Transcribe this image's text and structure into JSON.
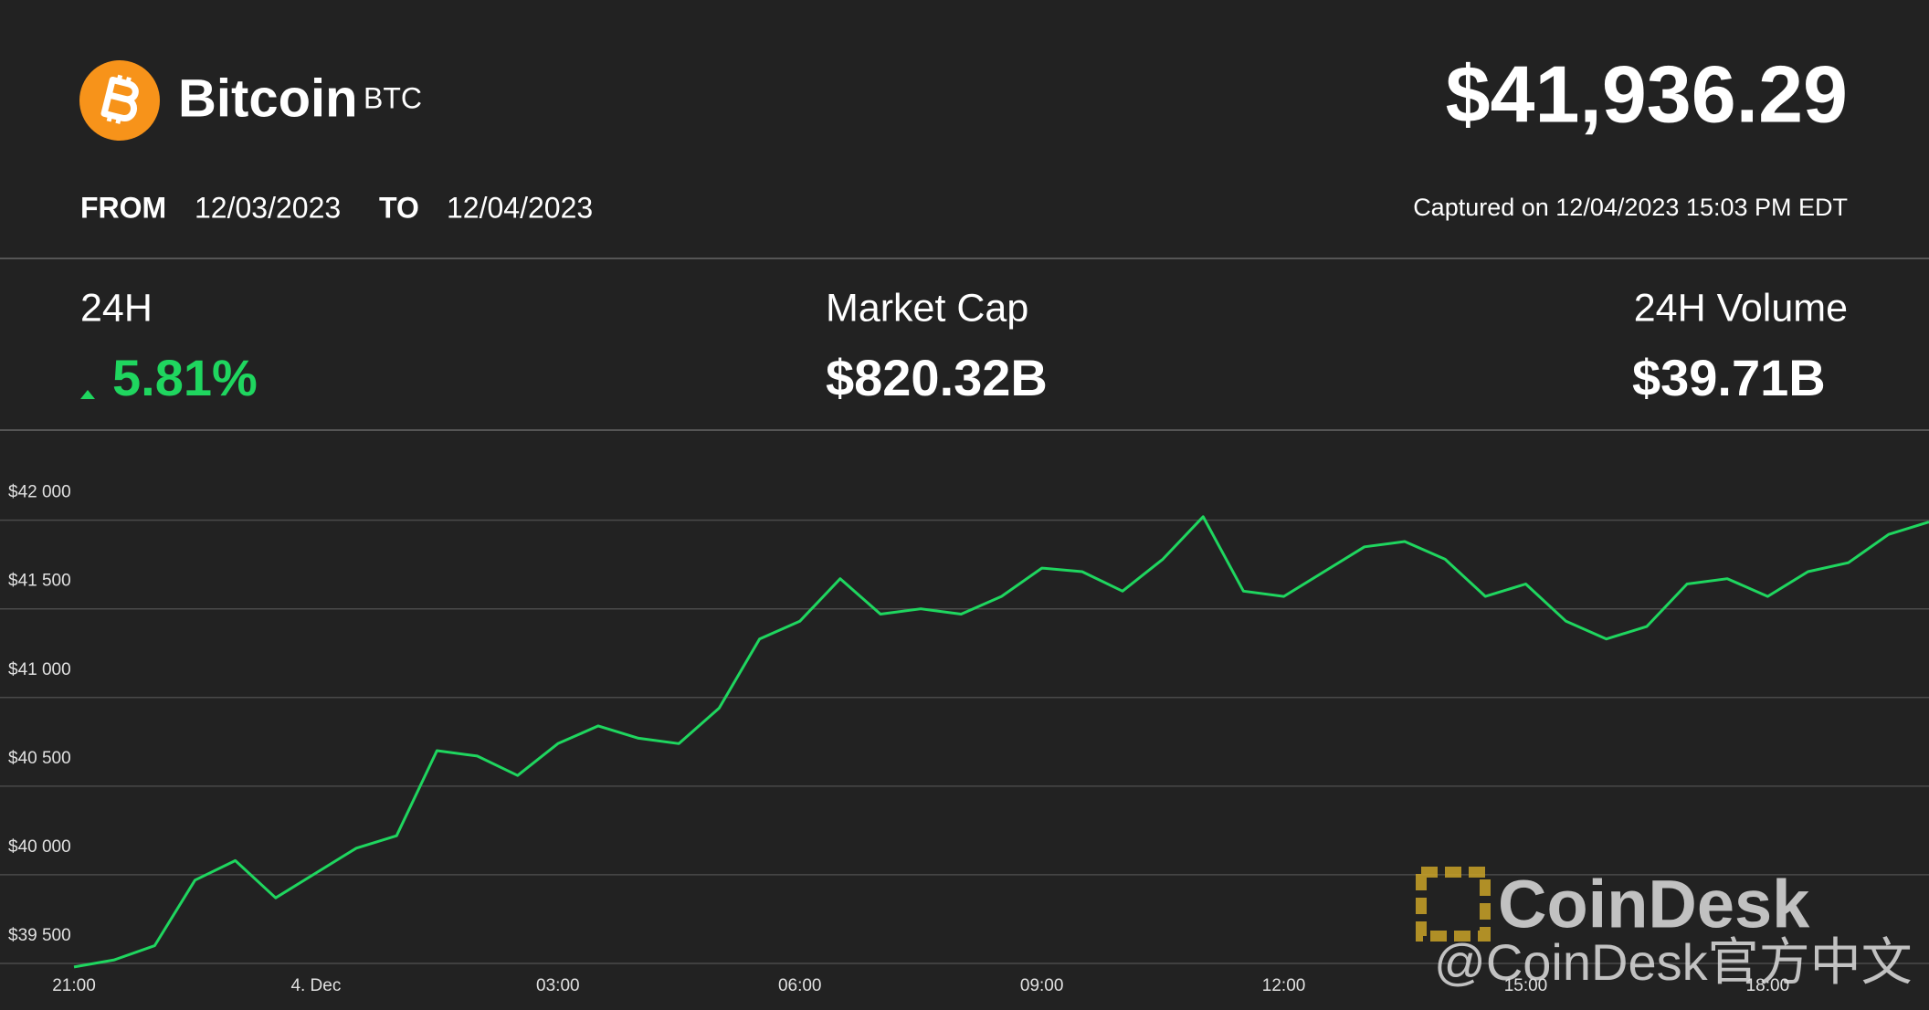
{
  "header": {
    "name": "Bitcoin",
    "symbol": "BTC",
    "price": "$41,936.29",
    "from_label": "FROM",
    "from": "12/03/2023",
    "to_label": "TO",
    "to": "12/04/2023",
    "captured": "Captured on 12/04/2023 15:03 PM EDT"
  },
  "stats": [
    {
      "label": "24H",
      "value": "5.81%"
    },
    {
      "label": "Market Cap",
      "value": "$820.32B"
    },
    {
      "label": "24H Volume",
      "value": "$39.71B"
    }
  ],
  "watermark": {
    "brand": "CoinDesk",
    "handle": "@CoinDesk官方中文"
  },
  "chart_data": {
    "type": "line",
    "color": "#1fd65f",
    "categories": [
      "21:00",
      null,
      null,
      null,
      null,
      null,
      "4. Dec",
      null,
      null,
      null,
      null,
      null,
      "03:00",
      null,
      null,
      null,
      null,
      null,
      "06:00",
      null,
      null,
      null,
      null,
      null,
      "09:00",
      null,
      null,
      null,
      null,
      null,
      "12:00",
      null,
      null,
      null,
      null,
      null,
      "15:00",
      null,
      null,
      null,
      null,
      null,
      "18:00",
      null,
      null,
      null,
      null
    ],
    "values": [
      39480,
      39520,
      39600,
      39970,
      40080,
      39870,
      40010,
      40150,
      40220,
      40700,
      40670,
      40560,
      40740,
      40840,
      40770,
      40740,
      40940,
      41330,
      41430,
      41670,
      41470,
      41500,
      41470,
      41570,
      41730,
      41710,
      41600,
      41780,
      42020,
      41600,
      41570,
      41710,
      41850,
      41880,
      41780,
      41570,
      41640,
      41430,
      41330,
      41400,
      41640,
      41670,
      41570,
      41710,
      41760,
      41920,
      41990
    ],
    "ylim": [
      39500,
      42400
    ],
    "yticks": [
      {
        "value": 39500,
        "label": "$39 500"
      },
      {
        "value": 40000,
        "label": "$40 000"
      },
      {
        "value": 40500,
        "label": "$40 500"
      },
      {
        "value": 41000,
        "label": "$41 000"
      },
      {
        "value": 41500,
        "label": "$41 500"
      },
      {
        "value": 42000,
        "label": "$42 000"
      }
    ],
    "grid": true
  }
}
